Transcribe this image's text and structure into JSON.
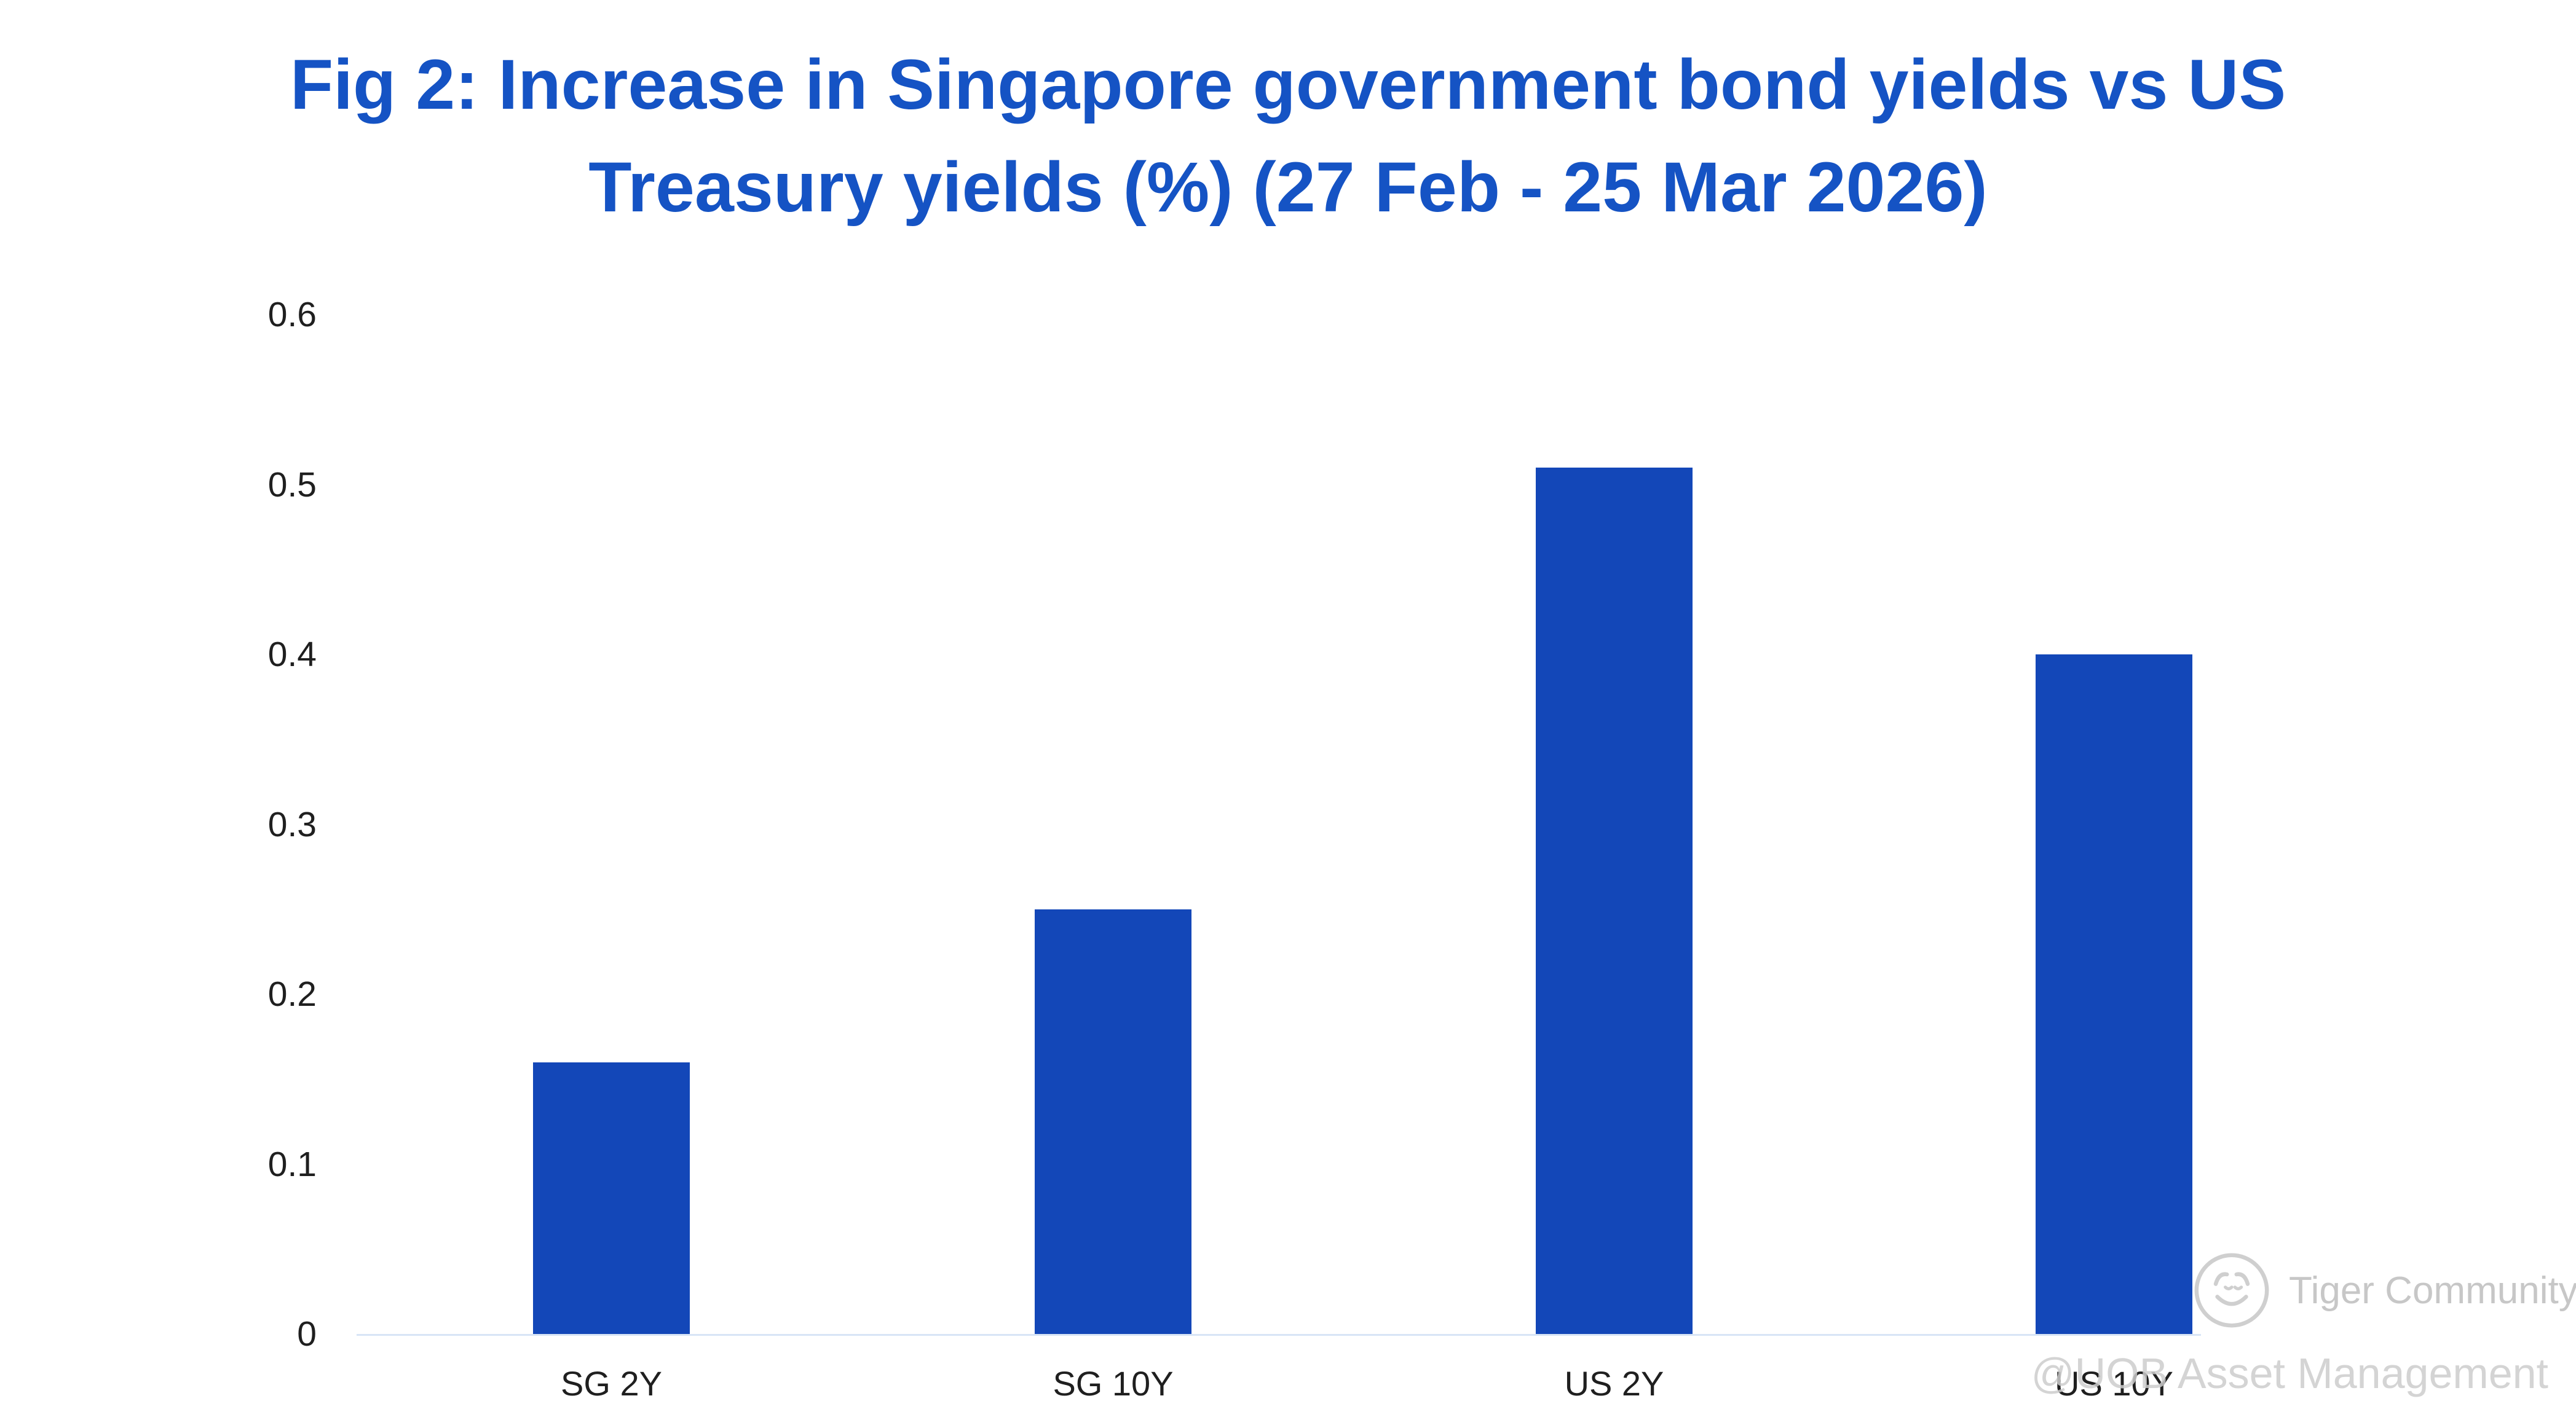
{
  "title": "Fig 2: Increase in Singapore government bond yields vs US Treasury yields (%) (27 Feb - 25 Mar 2026)",
  "chart_data": {
    "type": "bar",
    "categories": [
      "SG 2Y",
      "SG 10Y",
      "US 2Y",
      "US 10Y"
    ],
    "values": [
      0.16,
      0.25,
      0.51,
      0.4
    ],
    "title": "Fig 2: Increase in Singapore government bond yields vs US Treasury yields (%) (27 Feb - 25 Mar 2026)",
    "xlabel": "",
    "ylabel": "",
    "ylim": [
      0,
      0.6
    ],
    "ytick_labels": [
      "0",
      "0.1",
      "0.2",
      "0.3",
      "0.4",
      "0.5",
      "0.6"
    ],
    "grid": false,
    "legend": false,
    "bar_color": "#1347b8",
    "title_color": "#1553c4",
    "axis_line_color": "#d8e5f6"
  },
  "watermarks": {
    "tiger_community": "Tiger Community",
    "uob": "@UOB Asset Management"
  }
}
